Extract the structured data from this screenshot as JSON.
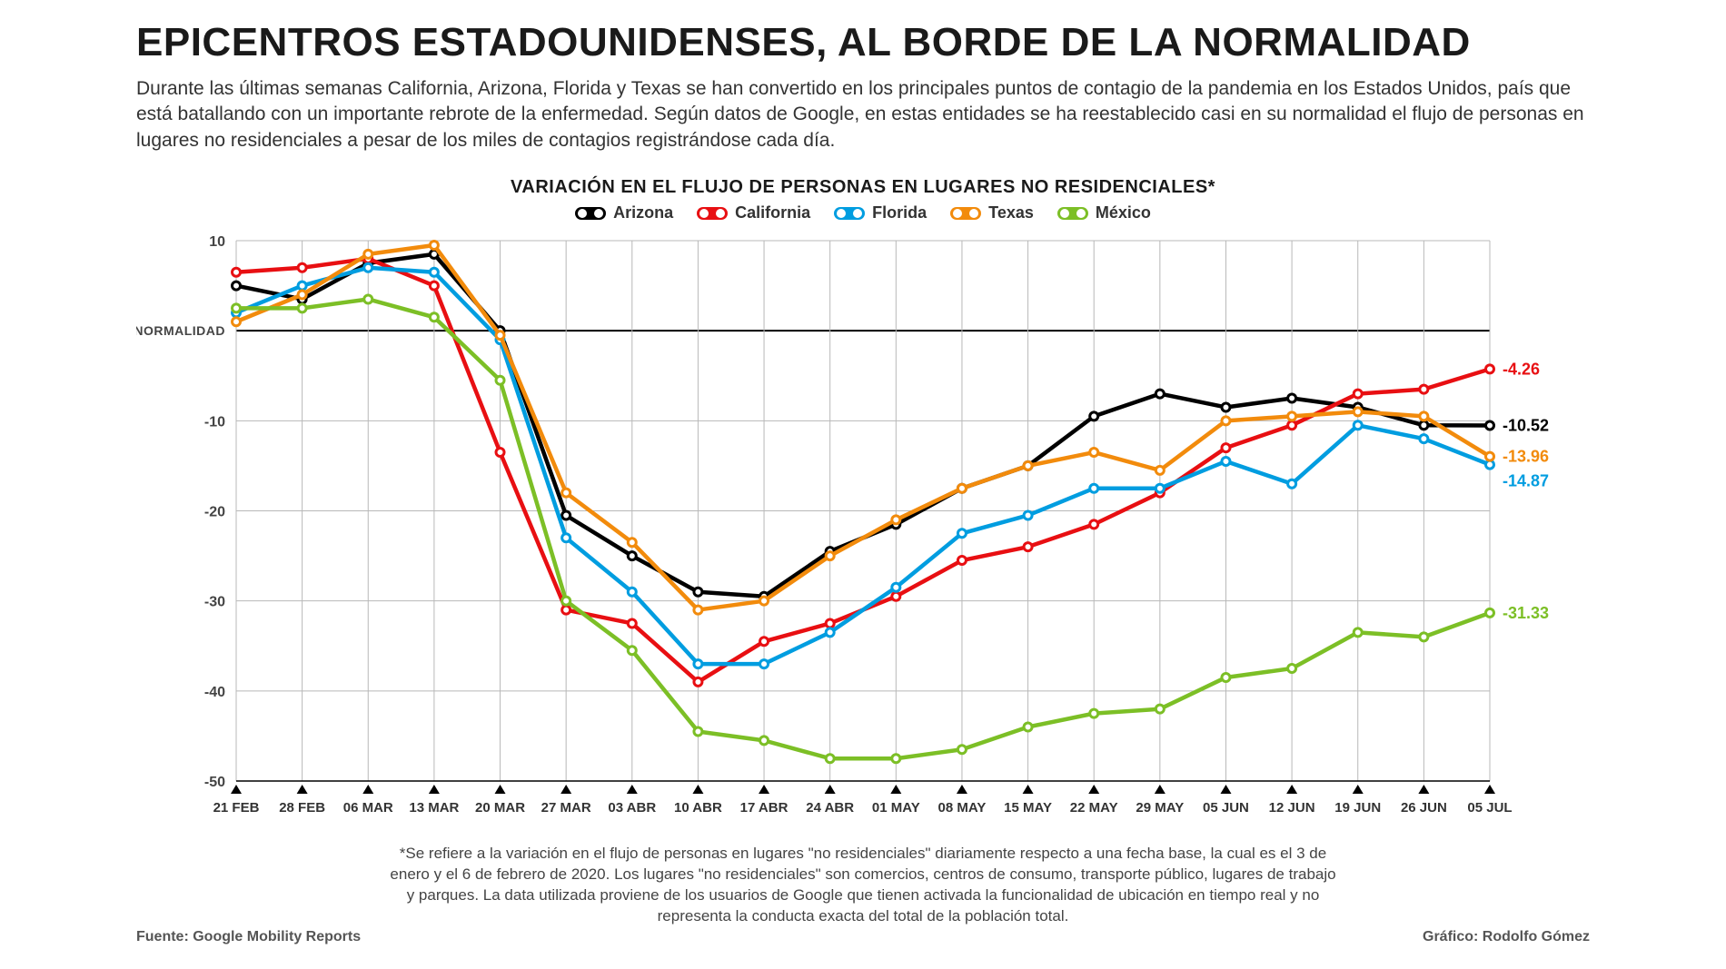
{
  "title": "EPICENTROS ESTADOUNIDENSES, AL BORDE DE LA NORMALIDAD",
  "intro": "Durante las últimas semanas California, Arizona, Florida y Texas se han convertido en los principales puntos de contagio de la pandemia en los Estados Unidos, país que está batallando con un importante rebrote de la enfermedad. Según datos de Google, en estas entidades se ha reestablecido casi en su normalidad el flujo de personas en lugares no residenciales a pesar de los miles de contagios registrándose cada día.",
  "chart": {
    "type": "line",
    "title": "VARIACIÓN EN EL FLUJO DE PERSONAS EN LUGARES NO RESIDENCIALES*",
    "background_color": "#ffffff",
    "grid_color": "#b8b8b8",
    "axis_color": "#000000",
    "line_width": 4.5,
    "marker_radius": 4.5,
    "marker_fill": "#ffffff",
    "marker_stroke_width": 3,
    "ylim": [
      -50,
      10
    ],
    "ytick_step": 10,
    "zero_label": "NORMALIDAD",
    "x_labels": [
      "21 FEB",
      "28 FEB",
      "06 MAR",
      "13 MAR",
      "20 MAR",
      "27 MAR",
      "03 ABR",
      "10 ABR",
      "17 ABR",
      "24 ABR",
      "01 MAY",
      "08 MAY",
      "15 MAY",
      "22 MAY",
      "29 MAY",
      "05 JUN",
      "12 JUN",
      "19 JUN",
      "26 JUN",
      "05 JUL"
    ],
    "series": [
      {
        "name": "Arizona",
        "color": "#000000",
        "values": [
          5.0,
          3.5,
          7.5,
          8.5,
          0.0,
          -20.5,
          -25.0,
          -29.0,
          -29.5,
          -24.5,
          -21.5,
          -17.5,
          -15.0,
          -9.5,
          -7.0,
          -8.5,
          -7.5,
          -8.5,
          -10.5,
          -10.52
        ],
        "end_label": "-10.52"
      },
      {
        "name": "California",
        "color": "#e80f12",
        "values": [
          6.5,
          7.0,
          8.0,
          5.0,
          -13.5,
          -31.0,
          -32.5,
          -39.0,
          -34.5,
          -32.5,
          -29.5,
          -25.5,
          -24.0,
          -21.5,
          -18.0,
          -13.0,
          -10.5,
          -7.0,
          -6.5,
          -4.26
        ],
        "end_label": "-4.26"
      },
      {
        "name": "Florida",
        "color": "#009de0",
        "values": [
          2.0,
          5.0,
          7.0,
          6.5,
          -1.0,
          -23.0,
          -29.0,
          -37.0,
          -37.0,
          -33.5,
          -28.5,
          -22.5,
          -20.5,
          -17.5,
          -17.5,
          -14.5,
          -17.0,
          -10.5,
          -12.0,
          -14.87
        ],
        "end_label": "-14.87"
      },
      {
        "name": "Texas",
        "color": "#f28b0c",
        "values": [
          1.0,
          4.0,
          8.5,
          9.5,
          -0.5,
          -18.0,
          -23.5,
          -31.0,
          -30.0,
          -25.0,
          -21.0,
          -17.5,
          -15.0,
          -13.5,
          -15.5,
          -10.0,
          -9.5,
          -9.0,
          -9.5,
          -13.96
        ],
        "end_label": "-13.96"
      },
      {
        "name": "México",
        "color": "#7cbf26",
        "values": [
          2.5,
          2.5,
          3.5,
          1.5,
          -5.5,
          -30.0,
          -35.5,
          -44.5,
          -45.5,
          -47.5,
          -47.5,
          -46.5,
          -44.0,
          -42.5,
          -42.0,
          -38.5,
          -37.5,
          -33.5,
          -34.0,
          -31.33
        ],
        "end_label": "-31.33"
      }
    ],
    "end_label_order": [
      "California",
      "Arizona",
      "Texas",
      "Florida",
      "México"
    ]
  },
  "footnote": "*Se refiere a la variación en el flujo de personas en lugares \"no residenciales\" diariamente respecto a una fecha base, la cual es el 3 de enero y el 6 de febrero de 2020. Los lugares \"no residenciales\" son comercios, centros de consumo, transporte público, lugares de trabajo y parques. La data utilizada proviene de los usuarios de Google que tienen activada la funcionalidad de ubicación en tiempo real y no representa la conducta exacta del total de la población total.",
  "source": "Fuente: Google Mobility Reports",
  "credit": "Gráfico: Rodolfo Gómez"
}
